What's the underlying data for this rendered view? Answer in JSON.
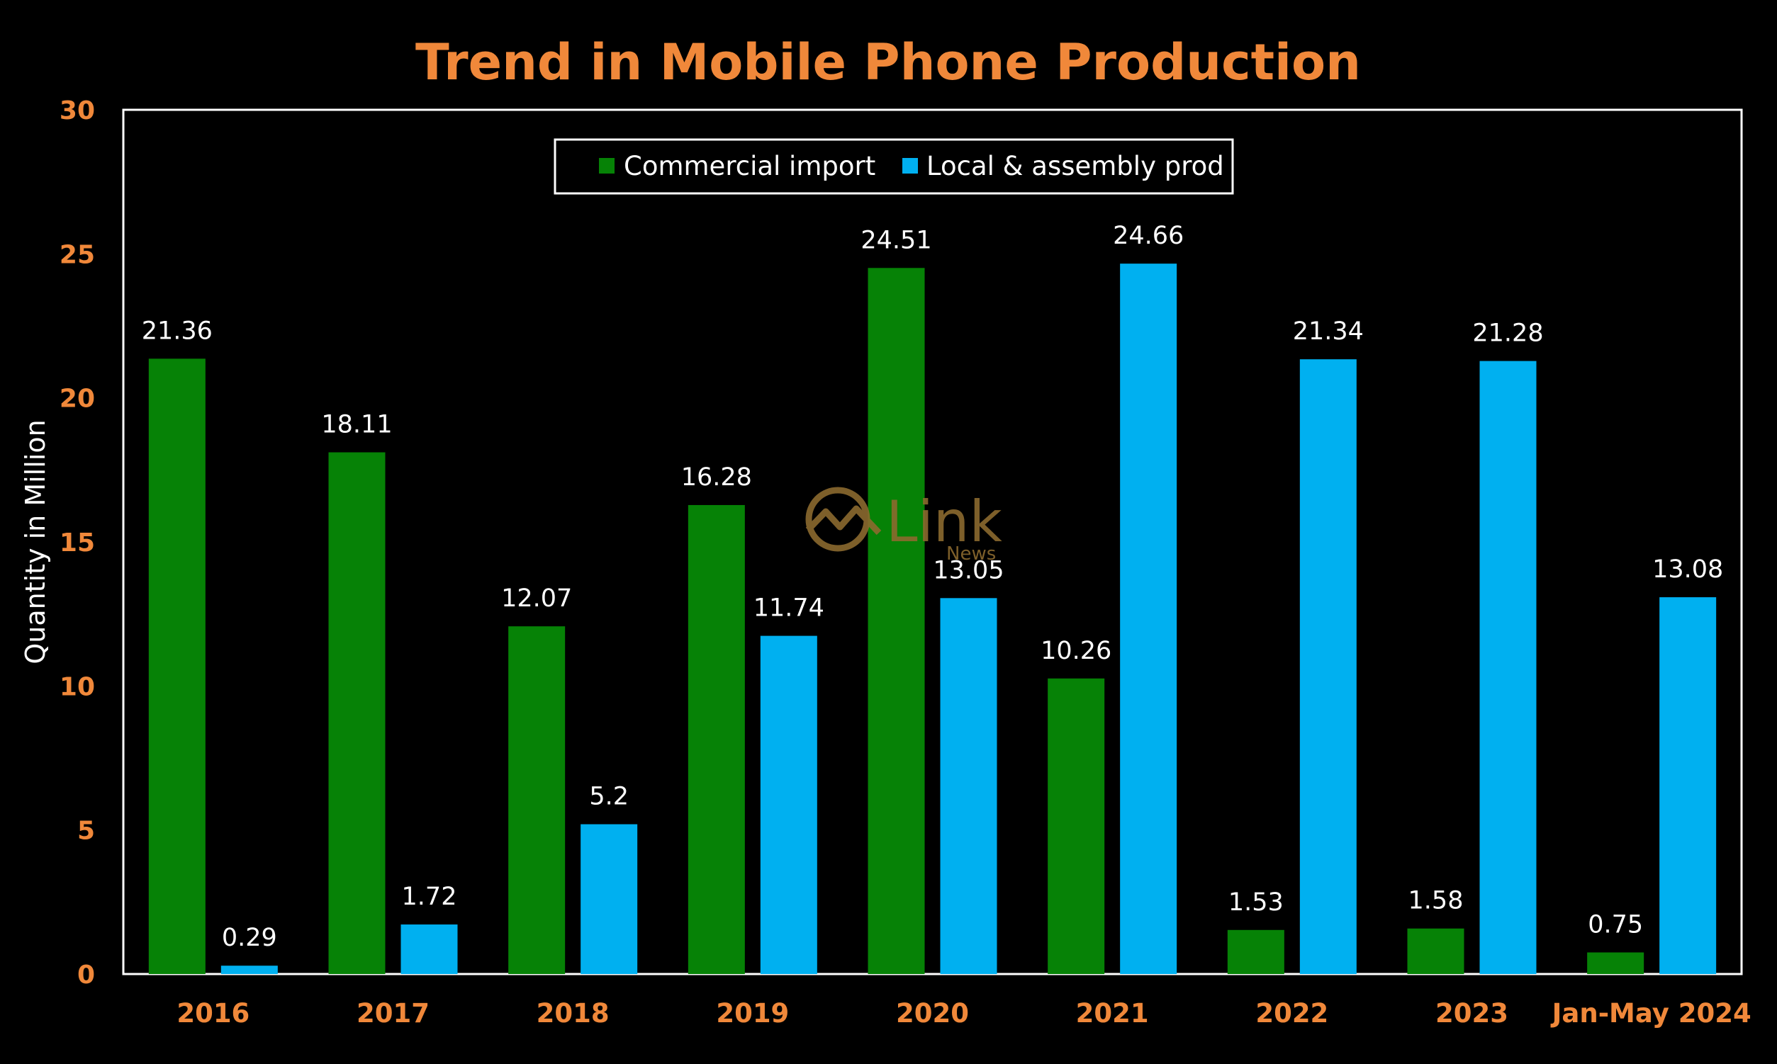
{
  "chart_data": {
    "type": "bar",
    "title": "Trend in Mobile Phone Production",
    "ylabel": "Quantity in Million",
    "xlabel": "",
    "ylim": [
      0,
      30
    ],
    "yticks": [
      0,
      5,
      10,
      15,
      20,
      25,
      30
    ],
    "categories": [
      "2016",
      "2017",
      "2018",
      "2019",
      "2020",
      "2021",
      "2022",
      "2023",
      "Jan-May 2024"
    ],
    "series": [
      {
        "name": "Commercial import",
        "color": "#068206",
        "values": [
          21.36,
          18.11,
          12.07,
          16.28,
          24.51,
          10.26,
          1.53,
          1.58,
          0.75
        ]
      },
      {
        "name": "Local & assembly prod",
        "color": "#00B0F0",
        "values": [
          0.29,
          1.72,
          5.2,
          11.74,
          13.05,
          24.66,
          21.34,
          21.28,
          13.08
        ]
      }
    ],
    "data_labels": true,
    "grid": false,
    "legend": "top-center"
  },
  "watermark": {
    "brand": "Link",
    "sub": "News"
  },
  "colors": {
    "background": "#000000",
    "accent": "#F0883A",
    "text": "#FFFFFF",
    "watermark": "#8B6A2F"
  }
}
